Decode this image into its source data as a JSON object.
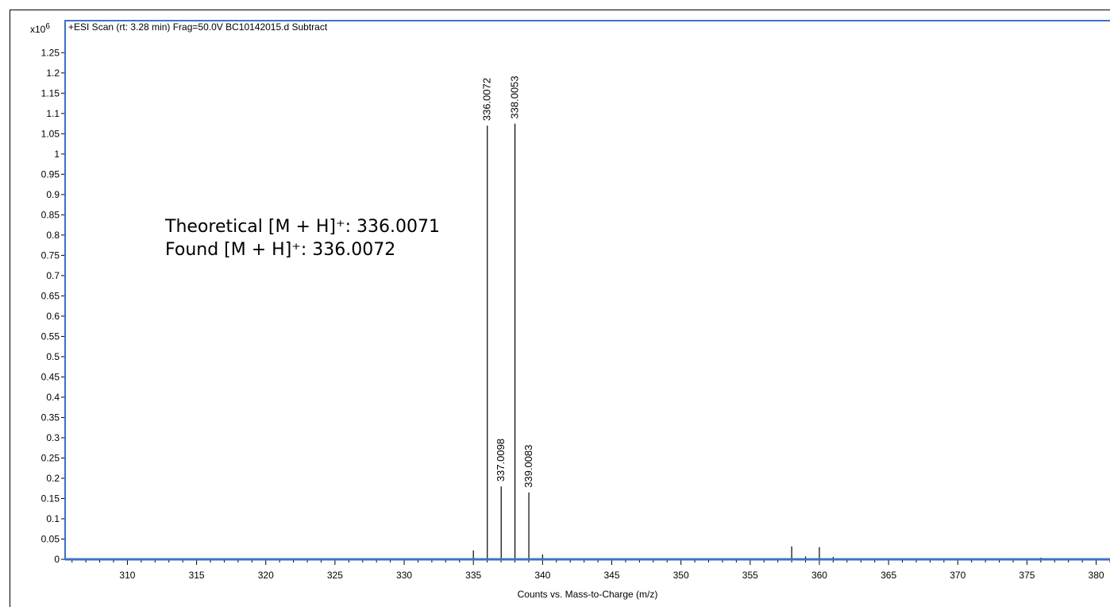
{
  "chart_data": {
    "type": "bar",
    "title": "+ESI Scan (rt: 3.28 min) Frag=50.0V BC10142015.d  Subtract",
    "y_multiplier": "x10",
    "y_multiplier_exp": "6",
    "xlabel": "Counts vs. Mass-to-Charge (m/z)",
    "ylabel": "",
    "xlim": [
      305.5,
      381
    ],
    "ylim": [
      0,
      1.28
    ],
    "x_ticks": [
      "310",
      "315",
      "320",
      "325",
      "330",
      "335",
      "340",
      "345",
      "350",
      "355",
      "360",
      "365",
      "370",
      "375",
      "380"
    ],
    "y_ticks": [
      "0",
      "0.05",
      "0.1",
      "0.15",
      "0.2",
      "0.25",
      "0.3",
      "0.35",
      "0.4",
      "0.45",
      "0.5",
      "0.55",
      "0.6",
      "0.65",
      "0.7",
      "0.75",
      "0.8",
      "0.85",
      "0.9",
      "0.95",
      "1",
      "1.05",
      "1.1",
      "1.15",
      "1.2",
      "1.25"
    ],
    "peaks": [
      {
        "x": 335.0,
        "y": 0.022,
        "label": ""
      },
      {
        "x": 336.0072,
        "y": 1.07,
        "label": "336.0072"
      },
      {
        "x": 337.0098,
        "y": 0.18,
        "label": "337.0098"
      },
      {
        "x": 338.0053,
        "y": 1.075,
        "label": "338.0053"
      },
      {
        "x": 339.0083,
        "y": 0.165,
        "label": "339.0083"
      },
      {
        "x": 340.0,
        "y": 0.012,
        "label": ""
      },
      {
        "x": 341.0,
        "y": 0.003,
        "label": ""
      },
      {
        "x": 327.0,
        "y": 0.002,
        "label": ""
      },
      {
        "x": 357.0,
        "y": 0.003,
        "label": ""
      },
      {
        "x": 358.0,
        "y": 0.032,
        "label": ""
      },
      {
        "x": 359.0,
        "y": 0.007,
        "label": ""
      },
      {
        "x": 360.0,
        "y": 0.03,
        "label": ""
      },
      {
        "x": 361.0,
        "y": 0.006,
        "label": ""
      },
      {
        "x": 374.0,
        "y": 0.003,
        "label": ""
      },
      {
        "x": 376.0,
        "y": 0.004,
        "label": ""
      }
    ],
    "annotations": [
      {
        "text": "Theoretical [M + H]⁺: 336.0071"
      },
      {
        "text": "Found [M + H]⁺: 336.0072"
      }
    ],
    "frame_color": "#3a74c4"
  }
}
